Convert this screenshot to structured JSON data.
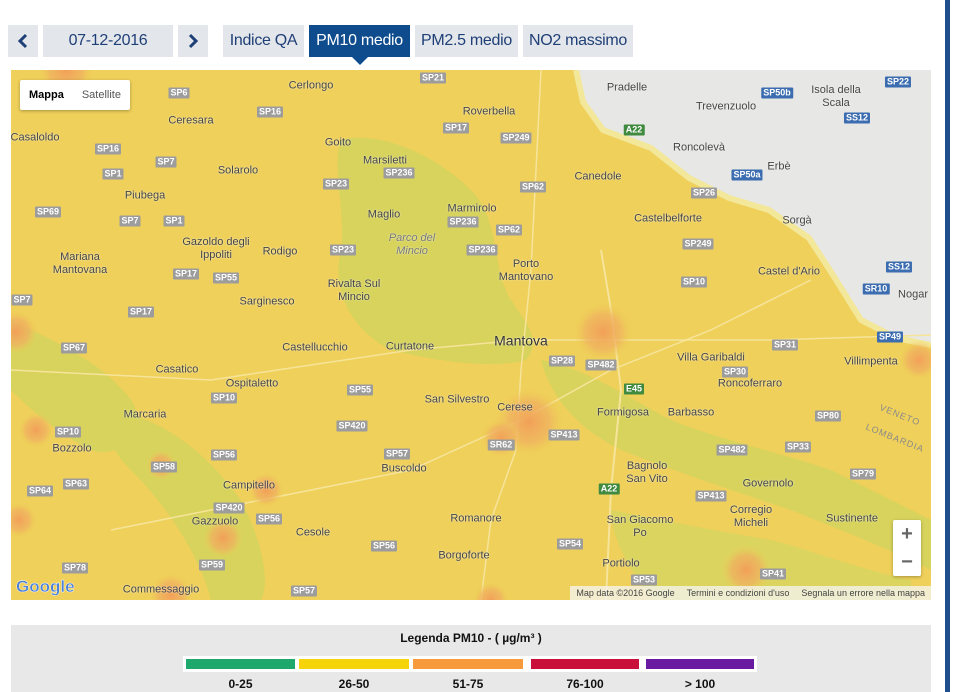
{
  "nav": {
    "date": "07-12-2016",
    "tabs": [
      "Indice QA",
      "PM10 medio",
      "PM2.5 medio",
      "NO2 massimo"
    ],
    "active_tab": 1
  },
  "map": {
    "type_buttons": [
      "Mappa",
      "Satellite"
    ],
    "places": [
      "Cerlongo",
      "Pradelle",
      "Isola della Scala",
      "Trevenzuolo",
      "Ceresara",
      "Roverbella",
      "Casaloldo",
      "Goito",
      "Roncolevà",
      "Marsiletti",
      "Erbè",
      "Solarolo",
      "Canedole",
      "Piubega",
      "Marmirolo",
      "Maglio",
      "Castelbelforte",
      "Sorgà",
      "Gazoldo degli Ippoliti",
      "Mariana Mantovana",
      "Rodigo",
      "Parco del Mincio",
      "Porto Mantovano",
      "Castel d'Ario",
      "Sarginesco",
      "Rivalta Sul Mincio",
      "Castellucchio",
      "Curtatone",
      "Mantova",
      "Villa Garibaldi",
      "Villimpenta",
      "Casatico",
      "Ospitaletto",
      "Roncoferraro",
      "San Silvestro",
      "Marcaria",
      "Cerese",
      "Formigosa",
      "Barbasso",
      "Bozzolo",
      "Buscoldo",
      "Bagnolo San Vito",
      "Governolo",
      "Campitello",
      "Corregio Micheli",
      "Gazzuolo",
      "Romanore",
      "Sustinente",
      "Cesole",
      "San Giacomo Po",
      "Borgoforte",
      "Portiolo",
      "Commessaggio",
      "Nogar"
    ],
    "regions": [
      "VENETO",
      "LOMBARDIA"
    ],
    "roads": [
      "SP6",
      "SP21",
      "SP16",
      "SP17",
      "SP249",
      "A22",
      "SP50b",
      "SS12",
      "SP22",
      "SP16",
      "SP7",
      "SP1",
      "SP23",
      "SP236",
      "SP62",
      "SP50a",
      "SP26",
      "SP69",
      "SP7",
      "SP1",
      "SP236",
      "SP62",
      "SP249",
      "SP23",
      "SP236",
      "SP17",
      "SP55",
      "SP10",
      "SP7",
      "SP17",
      "SS12",
      "SR10",
      "SP49",
      "SP67",
      "SP28",
      "SP482",
      "SP31",
      "SP30",
      "SP55",
      "SP10",
      "E45",
      "SP420",
      "SP80",
      "SP10",
      "SP413",
      "SR62",
      "SP57",
      "SP482",
      "SP33",
      "SP58",
      "SP56",
      "SP79",
      "SP64",
      "SP63",
      "SP413",
      "A22",
      "SP420",
      "SP56",
      "SP56",
      "SP54",
      "SP59",
      "SP78",
      "SP57",
      "SP53",
      "SP41"
    ],
    "logo": "Google",
    "zoom": [
      "+",
      "−"
    ],
    "attribution": [
      "Map data ©2016 Google",
      "Termini e condizioni d'uso",
      "Segnala un errore nella mappa"
    ]
  },
  "legend": {
    "title": "Legenda PM10 - ( µg/m³ )",
    "classes": [
      {
        "label": "0-25",
        "color": "#1ea86c"
      },
      {
        "label": "26-50",
        "color": "#f5d50a"
      },
      {
        "label": "51-75",
        "color": "#f69a3c"
      },
      {
        "label": "76-100",
        "color": "#c8103a"
      },
      {
        "label": "> 100",
        "color": "#6a1aa0"
      }
    ]
  }
}
